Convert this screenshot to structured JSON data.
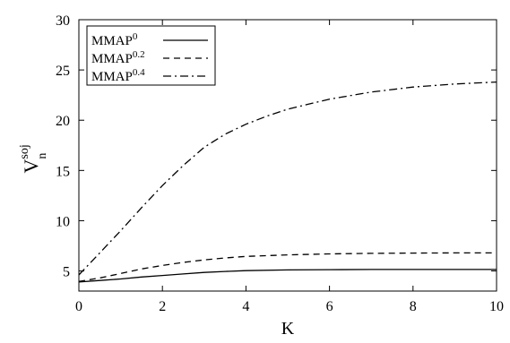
{
  "chart_data": {
    "type": "line",
    "xlabel": "K",
    "ylabel": {
      "base": "V",
      "sup": "soj",
      "sub": "n"
    },
    "xlim": [
      0,
      10
    ],
    "ylim": [
      3,
      30
    ],
    "xticks": [
      0,
      2,
      4,
      6,
      8,
      10
    ],
    "yticks": [
      5,
      10,
      15,
      20,
      25,
      30
    ],
    "xtick_labels": [
      "0",
      "2",
      "4",
      "6",
      "8",
      "10"
    ],
    "ytick_labels": [
      "5",
      "10",
      "15",
      "20",
      "25",
      "30"
    ],
    "grid": false,
    "legend_position": "top-left",
    "series": [
      {
        "name": "MMAP",
        "name_sup": "0",
        "dash": "solid",
        "x": [
          0,
          0.5,
          1,
          1.5,
          2,
          2.5,
          3,
          3.5,
          4,
          5,
          6,
          7,
          8,
          9,
          10
        ],
        "y": [
          3.9,
          4.05,
          4.2,
          4.4,
          4.55,
          4.7,
          4.85,
          4.95,
          5.03,
          5.1,
          5.13,
          5.15,
          5.15,
          5.15,
          5.15
        ]
      },
      {
        "name": "MMAP",
        "name_sup": "0.2",
        "dash": "dashed",
        "x": [
          0,
          0.5,
          1,
          1.5,
          2,
          2.5,
          3,
          3.5,
          4,
          5,
          6,
          7,
          8,
          9,
          10
        ],
        "y": [
          3.95,
          4.3,
          4.75,
          5.2,
          5.55,
          5.85,
          6.1,
          6.3,
          6.45,
          6.6,
          6.7,
          6.75,
          6.78,
          6.8,
          6.8
        ]
      },
      {
        "name": "MMAP",
        "name_sup": "0.4",
        "dash": "dashdot",
        "x": [
          0,
          0.5,
          1,
          1.5,
          2,
          2.5,
          3,
          3.5,
          4,
          4.5,
          5,
          5.5,
          6,
          7,
          8,
          9,
          10
        ],
        "y": [
          4.6,
          6.8,
          9.0,
          11.3,
          13.5,
          15.5,
          17.3,
          18.6,
          19.6,
          20.4,
          21.1,
          21.6,
          22.1,
          22.8,
          23.3,
          23.6,
          23.8
        ]
      }
    ]
  }
}
